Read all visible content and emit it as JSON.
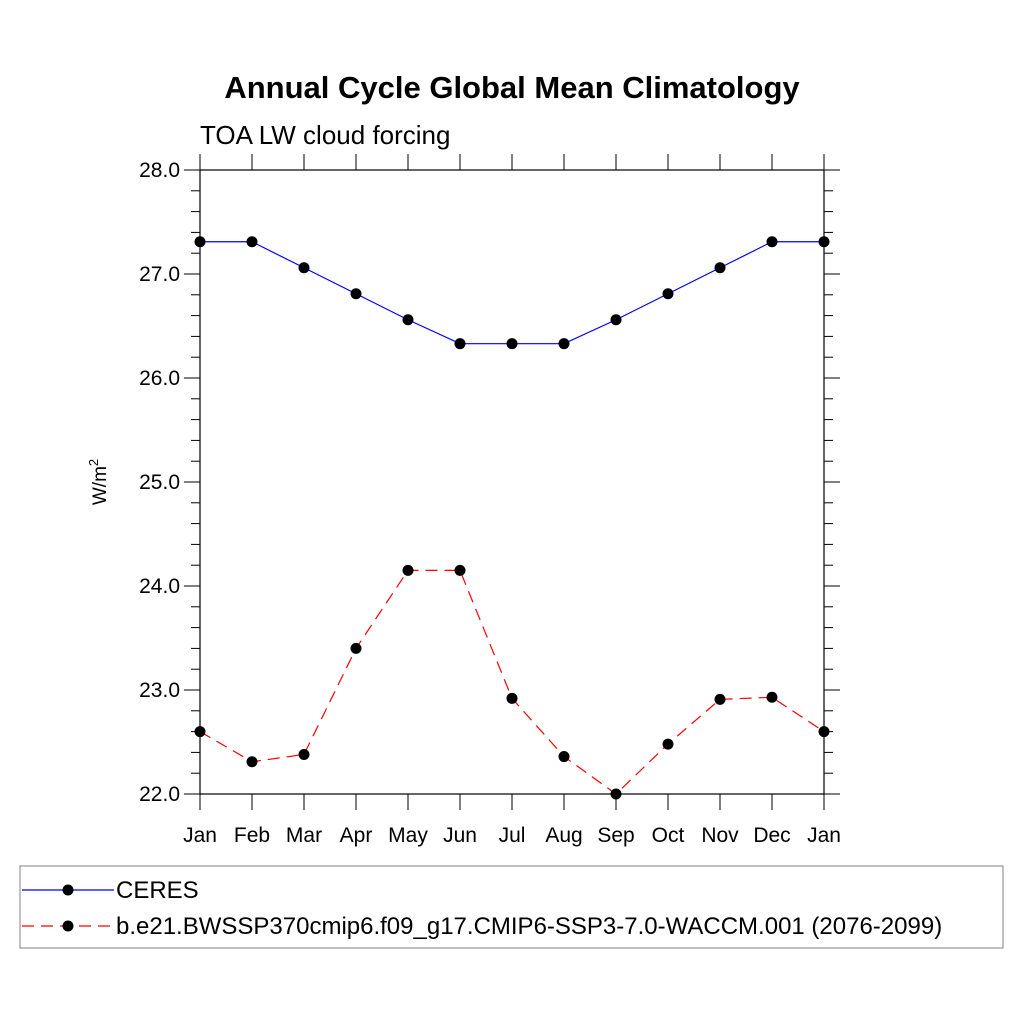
{
  "chart_data": {
    "type": "line",
    "title": "Annual Cycle Global Mean Climatology",
    "subtitle": "TOA LW cloud forcing",
    "ylabel_base": "W/m",
    "ylabel_sup": "2",
    "categories": [
      "Jan",
      "Feb",
      "Mar",
      "Apr",
      "May",
      "Jun",
      "Jul",
      "Aug",
      "Sep",
      "Oct",
      "Nov",
      "Dec",
      "Jan"
    ],
    "ylim": [
      22.0,
      28.0
    ],
    "yticks": [
      "22.0",
      "23.0",
      "24.0",
      "25.0",
      "26.0",
      "27.0",
      "28.0"
    ],
    "legend_position": "bottom",
    "series": [
      {
        "name": "CERES",
        "color": "#0000ff",
        "dash": "solid",
        "values": [
          27.31,
          27.31,
          27.06,
          26.81,
          26.56,
          26.33,
          26.33,
          26.33,
          26.56,
          26.81,
          27.06,
          27.31,
          27.31
        ]
      },
      {
        "name": "b.e21.BWSSP370cmip6.f09_g17.CMIP6-SSP3-7.0-WACCM.001 (2076-2099)",
        "color": "#ff0000",
        "dash": "dashed",
        "values": [
          22.6,
          22.31,
          22.38,
          23.4,
          24.15,
          24.15,
          22.92,
          22.36,
          22.0,
          22.48,
          22.91,
          22.93,
          22.6
        ]
      }
    ]
  }
}
